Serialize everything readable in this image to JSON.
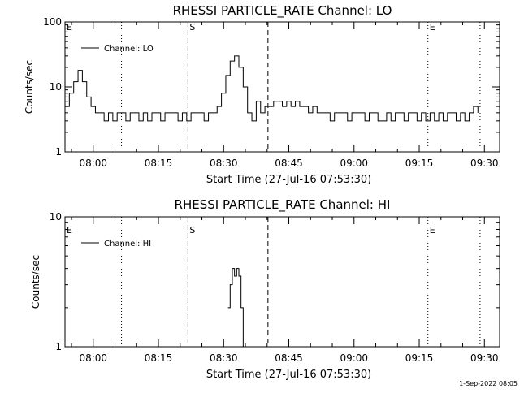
{
  "footer_text": "1-Sep-2022 08:05",
  "chart_data": [
    {
      "type": "line",
      "title": "RHESSI PARTICLE_RATE Channel: LO",
      "xlabel": "Start Time (27-Jul-16 07:53:30)",
      "ylabel": "Counts/sec",
      "y_scale": "log",
      "ylim": [
        1,
        100
      ],
      "y_ticks": [
        "1",
        "10",
        "100"
      ],
      "x_unit": "minutes since 07:53:30",
      "xlim": [
        0,
        100
      ],
      "x_ticks": [
        {
          "label": "08:00",
          "value": 6.5
        },
        {
          "label": "08:15",
          "value": 21.5
        },
        {
          "label": "08:30",
          "value": 36.5
        },
        {
          "label": "08:45",
          "value": 51.5
        },
        {
          "label": "09:00",
          "value": 66.5
        },
        {
          "label": "09:15",
          "value": 81.5
        },
        {
          "label": "09:30",
          "value": 96.5
        }
      ],
      "legend": {
        "position": "top-left",
        "entries": [
          "Channel: LO"
        ]
      },
      "event_lines": [
        {
          "label": "E",
          "style": "dotted",
          "x": 0
        },
        {
          "label": "",
          "style": "dotted",
          "x": 13
        },
        {
          "label": "S",
          "style": "dashed",
          "x": 28.3
        },
        {
          "label": "",
          "style": "dashed",
          "x": 46.7
        },
        {
          "label": "E",
          "style": "dotted",
          "x": 83.5
        },
        {
          "label": "",
          "style": "dotted",
          "x": 95.5
        }
      ],
      "series": [
        {
          "name": "Channel: LO",
          "x": [
            0,
            1,
            2,
            3,
            4,
            5,
            6,
            7,
            8,
            9,
            10,
            11,
            12,
            13,
            14,
            15,
            16,
            17,
            18,
            19,
            20,
            21,
            22,
            23,
            24,
            25,
            26,
            27,
            28,
            29,
            30,
            31,
            32,
            33,
            34,
            35,
            36,
            37,
            38,
            39,
            40,
            41,
            42,
            43,
            44,
            45,
            46,
            47,
            48,
            49,
            50,
            51,
            52,
            53,
            54,
            55,
            56,
            57,
            58,
            59,
            60,
            61,
            62,
            63,
            64,
            65,
            66,
            67,
            68,
            69,
            70,
            71,
            72,
            73,
            74,
            75,
            76,
            77,
            78,
            79,
            80,
            81,
            82,
            83,
            84,
            85,
            86,
            87,
            88,
            89,
            90,
            91,
            92,
            93,
            94,
            95
          ],
          "values": [
            5,
            8,
            12,
            18,
            12,
            7,
            5,
            4,
            4,
            3,
            4,
            3,
            4,
            4,
            3,
            4,
            4,
            3,
            4,
            3,
            4,
            4,
            3,
            4,
            4,
            4,
            3,
            4,
            3,
            4,
            4,
            4,
            3,
            4,
            4,
            5,
            8,
            15,
            25,
            30,
            20,
            10,
            4,
            3,
            6,
            4,
            5,
            5,
            6,
            6,
            5,
            6,
            5,
            6,
            5,
            5,
            4,
            5,
            4,
            4,
            4,
            3,
            4,
            4,
            4,
            3,
            4,
            4,
            4,
            3,
            4,
            4,
            3,
            3,
            4,
            3,
            4,
            4,
            3,
            4,
            4,
            3,
            4,
            3,
            4,
            3,
            4,
            3,
            4,
            4,
            3,
            4,
            3,
            4,
            5,
            4
          ]
        }
      ]
    },
    {
      "type": "line",
      "title": "RHESSI PARTICLE_RATE Channel: HI",
      "xlabel": "Start Time (27-Jul-16 07:53:30)",
      "ylabel": "Counts/sec",
      "y_scale": "log",
      "ylim": [
        1,
        10
      ],
      "y_ticks": [
        "1",
        "10"
      ],
      "x_unit": "minutes since 07:53:30",
      "xlim": [
        0,
        100
      ],
      "x_ticks": [
        {
          "label": "08:00",
          "value": 6.5
        },
        {
          "label": "08:15",
          "value": 21.5
        },
        {
          "label": "08:30",
          "value": 36.5
        },
        {
          "label": "08:45",
          "value": 51.5
        },
        {
          "label": "09:00",
          "value": 66.5
        },
        {
          "label": "09:15",
          "value": 81.5
        },
        {
          "label": "09:30",
          "value": 96.5
        }
      ],
      "legend": {
        "position": "top-left",
        "entries": [
          "Channel: HI"
        ]
      },
      "event_lines": [
        {
          "label": "E",
          "style": "dotted",
          "x": 0
        },
        {
          "label": "",
          "style": "dotted",
          "x": 13
        },
        {
          "label": "S",
          "style": "dashed",
          "x": 28.3
        },
        {
          "label": "",
          "style": "dashed",
          "x": 46.7
        },
        {
          "label": "E",
          "style": "dotted",
          "x": 83.5
        },
        {
          "label": "",
          "style": "dotted",
          "x": 95.5
        }
      ],
      "series": [
        {
          "name": "Channel: HI",
          "x": [
            37.5,
            38.0,
            38.5,
            39.0,
            39.5,
            40.0,
            40.5,
            41.0
          ],
          "values": [
            2,
            3,
            4,
            3.5,
            4,
            3.5,
            2,
            1
          ]
        }
      ]
    }
  ]
}
